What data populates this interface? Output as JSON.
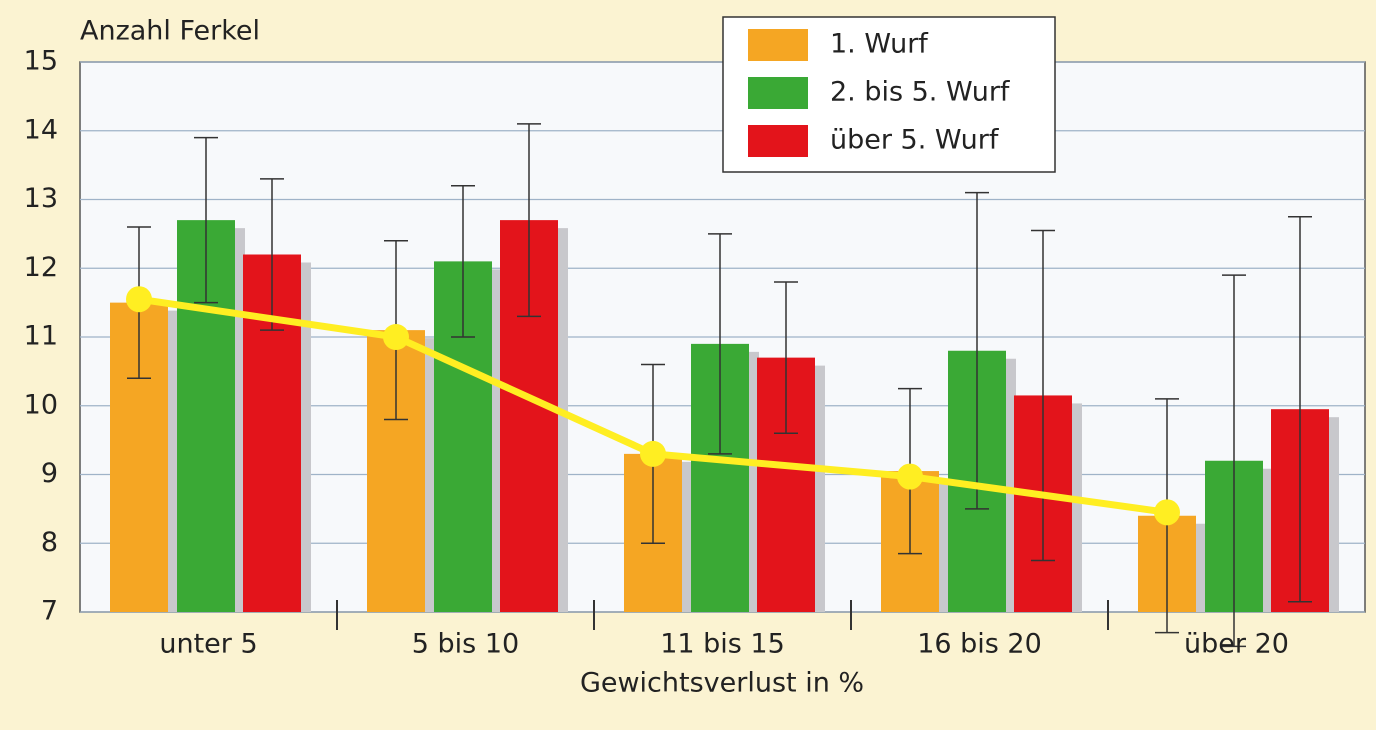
{
  "chart_data": {
    "type": "bar",
    "y_label": "Anzahl Ferkel",
    "x_label": "Gewichtsverlust in %",
    "categories": [
      "unter 5",
      "5 bis 10",
      "11 bis 15",
      "16 bis 20",
      "über 20"
    ],
    "series": [
      {
        "name": "1. Wurf",
        "color": "#f5a623",
        "values": [
          11.5,
          11.1,
          9.3,
          9.05,
          8.4
        ],
        "errors": [
          1.1,
          1.3,
          1.3,
          1.2,
          1.7
        ]
      },
      {
        "name": "2. bis 5. Wurf",
        "color": "#3aa935",
        "values": [
          12.7,
          12.1,
          10.9,
          10.8,
          9.2
        ],
        "errors": [
          1.2,
          1.1,
          1.6,
          2.3,
          2.7
        ]
      },
      {
        "name": "über 5. Wurf",
        "color": "#e3141b",
        "values": [
          12.2,
          12.7,
          10.7,
          10.15,
          9.95
        ],
        "errors": [
          1.1,
          1.4,
          1.1,
          2.4,
          2.8
        ]
      }
    ],
    "line": {
      "color": "#ffee22",
      "values": [
        11.55,
        11.0,
        9.3,
        8.97,
        8.45
      ]
    },
    "ylim": [
      7,
      15
    ],
    "yticks": [
      7,
      8,
      9,
      10,
      11,
      12,
      13,
      14,
      15
    ],
    "grid": true,
    "legend": "top-right"
  }
}
